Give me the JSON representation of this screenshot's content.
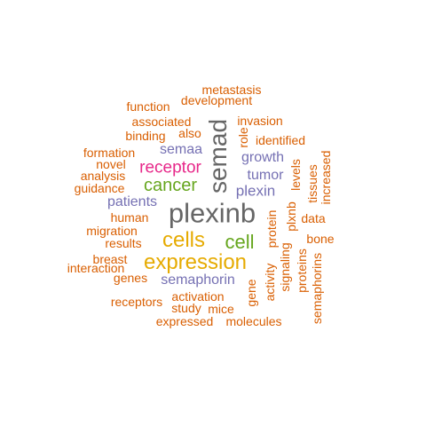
{
  "wordcloud": {
    "colors": {
      "orange": "#d95f02",
      "purple": "#7570b3",
      "gold": "#e6ab02",
      "green": "#66a61e",
      "magenta": "#e7298a",
      "gray": "#666666"
    },
    "words": {
      "metastasis": "metastasis",
      "development": "development",
      "function": "function",
      "associated": "associated",
      "invasion": "invasion",
      "binding": "binding",
      "also": "also",
      "role": "role",
      "identified": "identified",
      "formation": "formation",
      "semaa": "semaa",
      "novel": "novel",
      "receptor": "receptor",
      "growth": "growth",
      "analysis": "analysis",
      "semad": "semad",
      "tumor": "tumor",
      "guidance": "guidance",
      "cancer": "cancer",
      "plexin": "plexin",
      "levels": "levels",
      "tissues": "tissues",
      "increased": "increased",
      "patients": "patients",
      "plexinb": "plexinb",
      "human": "human",
      "data": "data",
      "migration": "migration",
      "cells": "cells",
      "cell": "cell",
      "protein": "protein",
      "plxnb": "plxnb",
      "results": "results",
      "bone": "bone",
      "expression": "expression",
      "breast": "breast",
      "signaling": "signaling",
      "interaction": "interaction",
      "proteins": "proteins",
      "genes": "genes",
      "semaphorin": "semaphorin",
      "activity": "activity",
      "gene": "gene",
      "semaphorins": "semaphorins",
      "activation": "activation",
      "receptors": "receptors",
      "study": "study",
      "mice": "mice",
      "expressed": "expressed",
      "molecules": "molecules"
    }
  }
}
